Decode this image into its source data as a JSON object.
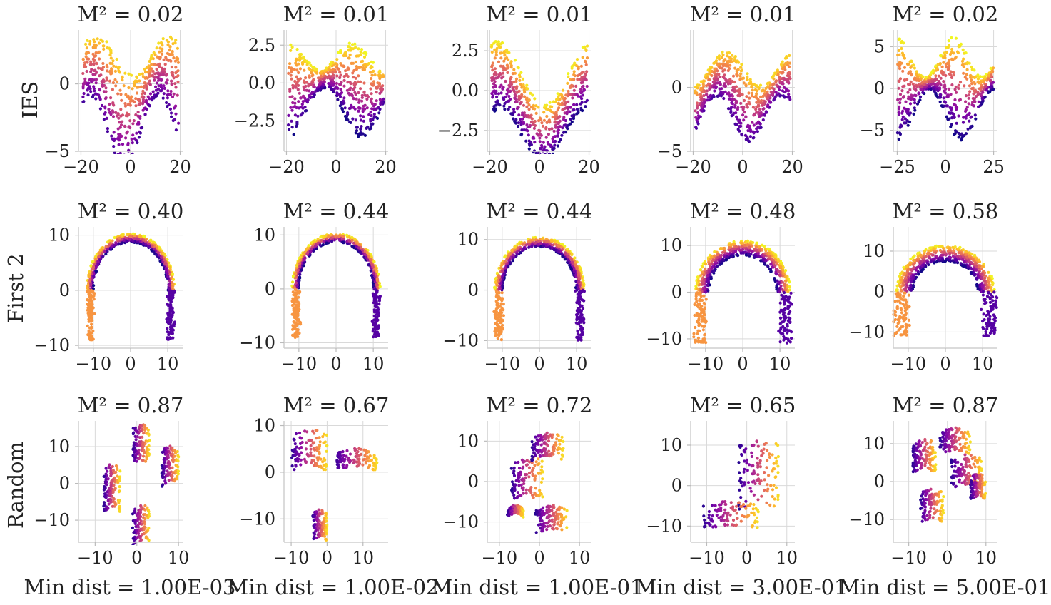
{
  "figure": {
    "type": "scatter-grid",
    "colormap": [
      "#0d0887",
      "#5302a3",
      "#8b0aa5",
      "#b83289",
      "#db5c68",
      "#f48849",
      "#febd2a",
      "#f0f921"
    ]
  },
  "row_labels": [
    "IES",
    "First 2",
    "Random"
  ],
  "column_labels": [
    "Min dist = 1.00E-03",
    "Min dist = 1.00E-02",
    "Min dist = 1.00E-01",
    "Min dist = 3.00E-01",
    "Min dist = 5.00E-01"
  ],
  "chart_data": [
    {
      "type": "scatter",
      "row": "IES",
      "col": 1,
      "title": "M² = 0.02",
      "shape": "wave",
      "xlim": [
        -21,
        21
      ],
      "ylim": [
        -5,
        4
      ],
      "xticks": [
        {
          "v": -20,
          "t": "−20"
        },
        {
          "v": 0,
          "t": "0"
        },
        {
          "v": 20,
          "t": "20"
        }
      ],
      "yticks": [
        {
          "v": -5,
          "t": "−5"
        },
        {
          "v": 0,
          "t": "0"
        }
      ]
    },
    {
      "type": "scatter",
      "row": "IES",
      "col": 2,
      "title": "M² = 0.01",
      "shape": "wave",
      "xlim": [
        -21,
        21
      ],
      "ylim": [
        -4.5,
        3.5
      ],
      "xticks": [
        {
          "v": -20,
          "t": "−20"
        },
        {
          "v": 0,
          "t": "0"
        },
        {
          "v": 20,
          "t": "20"
        }
      ],
      "yticks": [
        {
          "v": -2.5,
          "t": "−2.5"
        },
        {
          "v": 0,
          "t": "0.0"
        },
        {
          "v": 2.5,
          "t": "2.5"
        }
      ]
    },
    {
      "type": "scatter",
      "row": "IES",
      "col": 3,
      "title": "M² = 0.01",
      "shape": "wave",
      "xlim": [
        -21,
        21
      ],
      "ylim": [
        -3.8,
        3.8
      ],
      "xticks": [
        {
          "v": -20,
          "t": "−20"
        },
        {
          "v": 0,
          "t": "0"
        },
        {
          "v": 20,
          "t": "20"
        }
      ],
      "yticks": [
        {
          "v": -2.5,
          "t": "−2.5"
        },
        {
          "v": 0,
          "t": "0.0"
        },
        {
          "v": 2.5,
          "t": "2.5"
        }
      ]
    },
    {
      "type": "scatter",
      "row": "IES",
      "col": 4,
      "title": "M² = 0.01",
      "shape": "wave",
      "xlim": [
        -21,
        21
      ],
      "ylim": [
        -5,
        4.5
      ],
      "xticks": [
        {
          "v": -20,
          "t": "−20"
        },
        {
          "v": 0,
          "t": "0"
        },
        {
          "v": 20,
          "t": "20"
        }
      ],
      "yticks": [
        {
          "v": -5,
          "t": "−5"
        },
        {
          "v": 0,
          "t": "0"
        }
      ]
    },
    {
      "type": "scatter",
      "row": "IES",
      "col": 5,
      "title": "M² = 0.02",
      "shape": "wave",
      "xlim": [
        -27,
        27
      ],
      "ylim": [
        -7.5,
        7
      ],
      "xticks": [
        {
          "v": -25,
          "t": "−25"
        },
        {
          "v": 0,
          "t": "0"
        },
        {
          "v": 25,
          "t": "25"
        }
      ],
      "yticks": [
        {
          "v": -5,
          "t": "−5"
        },
        {
          "v": 0,
          "t": "0"
        },
        {
          "v": 5,
          "t": "5"
        }
      ]
    },
    {
      "type": "scatter",
      "row": "First 2",
      "col": 1,
      "title": "M² = 0.40",
      "shape": "arch",
      "xlim": [
        -14,
        14
      ],
      "ylim": [
        -10.5,
        11.5
      ],
      "xticks": [
        {
          "v": -10,
          "t": "−10"
        },
        {
          "v": 0,
          "t": "0"
        },
        {
          "v": 10,
          "t": "10"
        }
      ],
      "yticks": [
        {
          "v": -10,
          "t": "−10"
        },
        {
          "v": 0,
          "t": "0"
        },
        {
          "v": 10,
          "t": "10"
        }
      ]
    },
    {
      "type": "scatter",
      "row": "First 2",
      "col": 2,
      "title": "M² = 0.44",
      "shape": "arch",
      "xlim": [
        -14,
        14
      ],
      "ylim": [
        -11,
        11.5
      ],
      "xticks": [
        {
          "v": -10,
          "t": "−10"
        },
        {
          "v": 0,
          "t": "0"
        },
        {
          "v": 10,
          "t": "10"
        }
      ],
      "yticks": [
        {
          "v": -10,
          "t": "−10"
        },
        {
          "v": 0,
          "t": "0"
        },
        {
          "v": 10,
          "t": "10"
        }
      ]
    },
    {
      "type": "scatter",
      "row": "First 2",
      "col": 3,
      "title": "M² = 0.44",
      "shape": "arch",
      "xlim": [
        -14,
        14
      ],
      "ylim": [
        -11.5,
        12.5
      ],
      "xticks": [
        {
          "v": -10,
          "t": "−10"
        },
        {
          "v": 0,
          "t": "0"
        },
        {
          "v": 10,
          "t": "10"
        }
      ],
      "yticks": [
        {
          "v": -10,
          "t": "−10"
        },
        {
          "v": 0,
          "t": "0"
        },
        {
          "v": 10,
          "t": "10"
        }
      ]
    },
    {
      "type": "scatter",
      "row": "First 2",
      "col": 4,
      "title": "M² = 0.48",
      "shape": "arch",
      "xlim": [
        -14,
        14
      ],
      "ylim": [
        -12,
        14
      ],
      "xticks": [
        {
          "v": -10,
          "t": "−10"
        },
        {
          "v": 0,
          "t": "0"
        },
        {
          "v": 10,
          "t": "10"
        }
      ],
      "yticks": [
        {
          "v": -10,
          "t": "−10"
        },
        {
          "v": 0,
          "t": "0"
        },
        {
          "v": 10,
          "t": "10"
        }
      ]
    },
    {
      "type": "scatter",
      "row": "First 2",
      "col": 5,
      "title": "M² = 0.58",
      "shape": "arch",
      "xlim": [
        -14,
        14
      ],
      "ylim": [
        -14,
        16
      ],
      "xticks": [
        {
          "v": -10,
          "t": "−10"
        },
        {
          "v": 0,
          "t": "0"
        },
        {
          "v": 10,
          "t": "10"
        }
      ],
      "yticks": [
        {
          "v": -10,
          "t": "−10"
        },
        {
          "v": 0,
          "t": "0"
        },
        {
          "v": 10,
          "t": "10"
        }
      ]
    },
    {
      "type": "scatter",
      "row": "Random",
      "col": 1,
      "title": "M² = 0.87",
      "shape": "blobs",
      "xlim": [
        -14,
        11
      ],
      "ylim": [
        -16,
        17
      ],
      "xticks": [
        {
          "v": -10,
          "t": "−10"
        },
        {
          "v": 0,
          "t": "0"
        },
        {
          "v": 10,
          "t": "10"
        }
      ],
      "yticks": [
        {
          "v": -10,
          "t": "−10"
        },
        {
          "v": 0,
          "t": "0"
        },
        {
          "v": 10,
          "t": "10"
        }
      ]
    },
    {
      "type": "scatter",
      "row": "Random",
      "col": 2,
      "title": "M² = 0.67",
      "shape": "blobs",
      "xlim": [
        -12,
        17
      ],
      "ylim": [
        -15,
        11
      ],
      "xticks": [
        {
          "v": -10,
          "t": "−10"
        },
        {
          "v": 0,
          "t": "0"
        },
        {
          "v": 10,
          "t": "10"
        }
      ],
      "yticks": [
        {
          "v": -10,
          "t": "−10"
        },
        {
          "v": 0,
          "t": "0"
        },
        {
          "v": 10,
          "t": "10"
        }
      ]
    },
    {
      "type": "scatter",
      "row": "Random",
      "col": 3,
      "title": "M² = 0.72",
      "shape": "blobs",
      "xlim": [
        -13,
        13
      ],
      "ylim": [
        -15,
        15
      ],
      "xticks": [
        {
          "v": -10,
          "t": "−10"
        },
        {
          "v": 0,
          "t": "0"
        },
        {
          "v": 10,
          "t": "10"
        }
      ],
      "yticks": [
        {
          "v": -10,
          "t": "−10"
        },
        {
          "v": 0,
          "t": "0"
        },
        {
          "v": 10,
          "t": "10"
        }
      ]
    },
    {
      "type": "scatter",
      "row": "Random",
      "col": 4,
      "title": "M² = 0.65",
      "shape": "blobs",
      "xlim": [
        -14,
        12
      ],
      "ylim": [
        -14,
        16
      ],
      "xticks": [
        {
          "v": -10,
          "t": "−10"
        },
        {
          "v": 0,
          "t": "0"
        },
        {
          "v": 10,
          "t": "10"
        }
      ],
      "yticks": [
        {
          "v": -10,
          "t": "−10"
        },
        {
          "v": 0,
          "t": "0"
        },
        {
          "v": 10,
          "t": "10"
        }
      ]
    },
    {
      "type": "scatter",
      "row": "Random",
      "col": 5,
      "title": "M² = 0.87",
      "shape": "blobs",
      "xlim": [
        -14,
        13
      ],
      "ylim": [
        -16,
        16
      ],
      "xticks": [
        {
          "v": -10,
          "t": "−10"
        },
        {
          "v": 0,
          "t": "0"
        },
        {
          "v": 10,
          "t": "10"
        }
      ],
      "yticks": [
        {
          "v": -10,
          "t": "−10"
        },
        {
          "v": 0,
          "t": "0"
        },
        {
          "v": 10,
          "t": "10"
        }
      ]
    }
  ]
}
